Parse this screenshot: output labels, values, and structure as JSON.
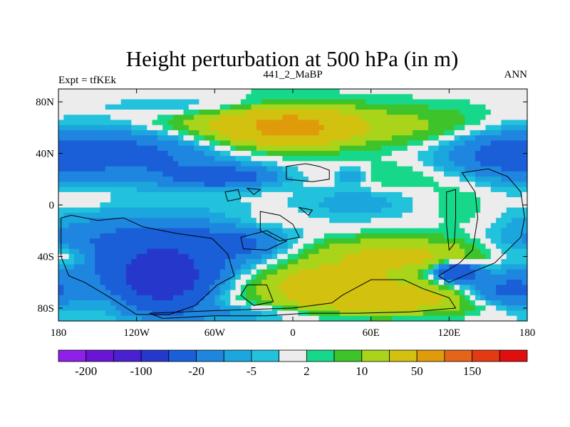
{
  "chart_data": {
    "type": "heatmap",
    "title": "Height perturbation at 500 hPa (in m)",
    "left_string": "Expt = tfKEk",
    "center_string": "441_2_MaBP",
    "right_string": "ANN",
    "x_ticks": [
      "180",
      "120W",
      "60W",
      "0",
      "60E",
      "120E",
      "180"
    ],
    "x_tick_values": [
      -180,
      -120,
      -60,
      0,
      60,
      120,
      180
    ],
    "y_ticks": [
      "80N",
      "40N",
      "0",
      "40S",
      "80S"
    ],
    "y_tick_values": [
      80,
      40,
      0,
      -40,
      -80
    ],
    "xlim": [
      -180,
      180
    ],
    "ylim": [
      -90,
      90
    ],
    "colorbar": {
      "levels": [
        -200,
        -150,
        -100,
        -50,
        -20,
        -10,
        -5,
        -2,
        2,
        5,
        10,
        20,
        50,
        100,
        150,
        200
      ],
      "labels": [
        "-200",
        "-100",
        "-20",
        "-5",
        "2",
        "10",
        "50",
        "150"
      ],
      "colors": [
        "#8f20e8",
        "#6a14d6",
        "#4a20d0",
        "#2638cc",
        "#1a5fd8",
        "#1f86e0",
        "#1ba6dd",
        "#22c2dc",
        "#ececec",
        "#17d88a",
        "#3ec42a",
        "#a9d41a",
        "#d2c10e",
        "#e09b0a",
        "#e4641a",
        "#e43a14",
        "#e00e0e"
      ]
    },
    "field_features": [
      {
        "lon": -120,
        "lat": 40,
        "value": -25,
        "sx": 45,
        "sy": 14
      },
      {
        "lon": 160,
        "lat": 40,
        "value": -25,
        "sx": 35,
        "sy": 14
      },
      {
        "lon": -55,
        "lat": 76,
        "value": -12,
        "sx": 50,
        "sy": 6
      },
      {
        "lon": -20,
        "lat": 63,
        "value": 30,
        "sx": 55,
        "sy": 12
      },
      {
        "lon": 0,
        "lat": 60,
        "value": 40,
        "sx": 28,
        "sy": 9
      },
      {
        "lon": 110,
        "lat": 60,
        "value": 10,
        "sx": 45,
        "sy": 12
      },
      {
        "lon": -55,
        "lat": 22,
        "value": -30,
        "sx": 28,
        "sy": 6
      },
      {
        "lon": 45,
        "lat": 23,
        "value": -12,
        "sx": 8,
        "sy": 5
      },
      {
        "lon": 80,
        "lat": 22,
        "value": 6,
        "sx": 30,
        "sy": 8
      },
      {
        "lon": -160,
        "lat": 5,
        "value": 4,
        "sx": 15,
        "sy": 6
      },
      {
        "lon": 50,
        "lat": 2,
        "value": -8,
        "sx": 28,
        "sy": 9
      },
      {
        "lon": 130,
        "lat": 0,
        "value": 5,
        "sx": 18,
        "sy": 18
      },
      {
        "lon": -20,
        "lat": -12,
        "value": 4,
        "sx": 22,
        "sy": 5
      },
      {
        "lon": -110,
        "lat": -35,
        "value": -30,
        "sx": 60,
        "sy": 18
      },
      {
        "lon": -45,
        "lat": -30,
        "value": -15,
        "sx": 25,
        "sy": 7
      },
      {
        "lon": -100,
        "lat": -58,
        "value": -80,
        "sx": 22,
        "sy": 14
      },
      {
        "lon": -170,
        "lat": -40,
        "value": 12,
        "sx": 12,
        "sy": 6
      },
      {
        "lon": 80,
        "lat": -40,
        "value": 25,
        "sx": 55,
        "sy": 10
      },
      {
        "lon": 60,
        "lat": -72,
        "value": 40,
        "sx": 50,
        "sy": 8
      },
      {
        "lon": 20,
        "lat": -58,
        "value": 25,
        "sx": 35,
        "sy": 8
      },
      {
        "lon": 125,
        "lat": -52,
        "value": -50,
        "sx": 12,
        "sy": 5
      },
      {
        "lon": 165,
        "lat": -68,
        "value": -25,
        "sx": 25,
        "sy": 10
      },
      {
        "lon": 150,
        "lat": -80,
        "value": 6,
        "sx": 30,
        "sy": 5
      },
      {
        "lon": -60,
        "lat": -84,
        "value": -10,
        "sx": 50,
        "sy": 5
      }
    ]
  }
}
